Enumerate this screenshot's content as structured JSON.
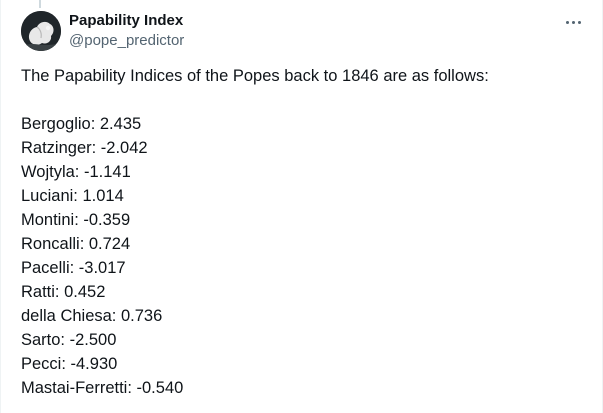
{
  "tweet": {
    "display_name": "Papability Index",
    "handle": "@pope_predictor",
    "avatar_icon": "avatar-image",
    "more_icon": "more-options-icon",
    "intro": "The Papability Indices of the Popes back to 1846 are as follows:",
    "entries": [
      "Bergoglio: 2.435",
      "Ratzinger: -2.042",
      "Wojtyla: -1.141",
      "Luciani: 1.014",
      "Montini: -0.359",
      "Roncalli: 0.724",
      "Pacelli: -3.017",
      "Ratti: 0.452",
      "della Chiesa: 0.736",
      "Sarto: -2.500",
      "Pecci: -4.930",
      "Mastai-Ferretti: -0.540"
    ]
  },
  "colors": {
    "text": "#0f1419",
    "secondary": "#536471",
    "border": "#eff3f4"
  }
}
